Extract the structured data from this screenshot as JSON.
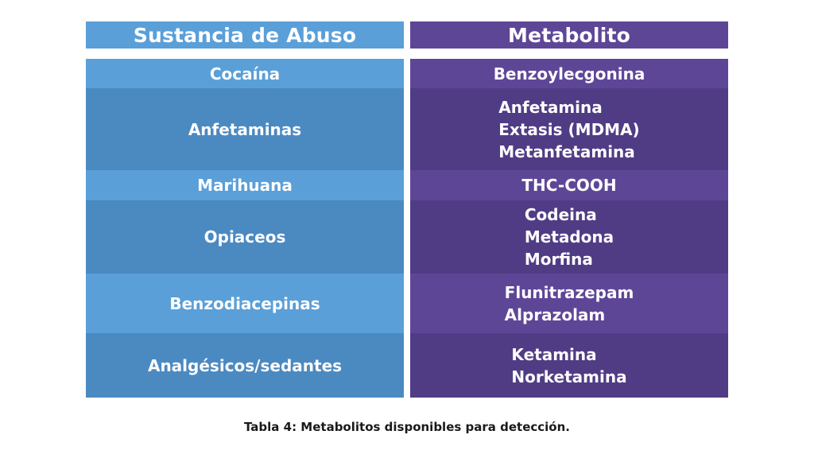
{
  "headers": {
    "substance": "Sustancia de Abuso",
    "metabolite": "Metabolito"
  },
  "rows": [
    {
      "substance": "Cocaína",
      "metabolites": [
        "Benzoylecgonina"
      ]
    },
    {
      "substance": "Anfetaminas",
      "metabolites": [
        "Anfetamina",
        "Extasis (MDMA)",
        "Metanfetamina"
      ]
    },
    {
      "substance": "Marihuana",
      "metabolites": [
        "THC-COOH"
      ]
    },
    {
      "substance": "Opiaceos",
      "metabolites": [
        "Codeina",
        "Metadona",
        "Morfina"
      ]
    },
    {
      "substance": "Benzodiacepinas",
      "metabolites": [
        "Flunitrazepam",
        "Alprazolam"
      ]
    },
    {
      "substance": "Analgésicos/sedantes",
      "metabolites": [
        "Ketamina",
        "Norketamina"
      ]
    }
  ],
  "caption": "Tabla 4: Metabolitos disponibles para detección.",
  "colors": {
    "blue_light": "#5a9fd8",
    "blue_dark": "#4b89c1",
    "purple_light": "#5e4697",
    "purple_dark": "#503c85"
  }
}
